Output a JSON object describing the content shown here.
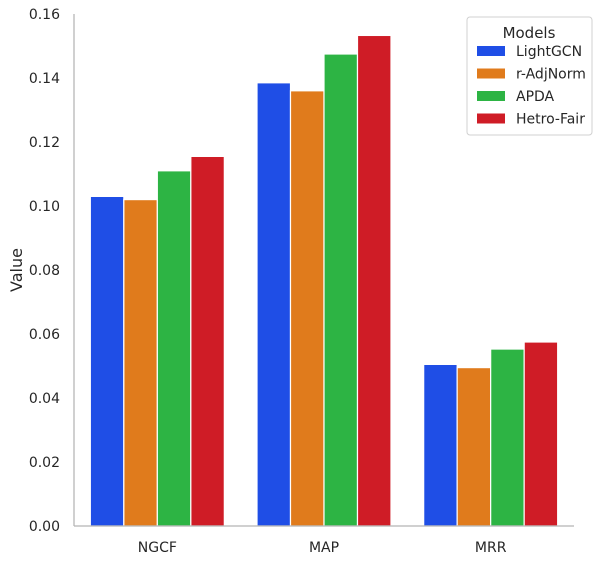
{
  "chart_data": {
    "type": "bar",
    "title": "",
    "xlabel": "",
    "ylabel": "Value",
    "ylim": [
      0,
      0.16
    ],
    "yticks": [
      "0.00",
      "0.02",
      "0.04",
      "0.06",
      "0.08",
      "0.10",
      "0.12",
      "0.14",
      "0.16"
    ],
    "categories": [
      "NGCF",
      "MAP",
      "MRR"
    ],
    "legend": {
      "title": "Models",
      "placement": "top-right"
    },
    "grid": false,
    "series": [
      {
        "name": "LightGCN",
        "color": "#1f4ee6",
        "values": [
          0.103,
          0.1385,
          0.0505
        ]
      },
      {
        "name": "r-AdjNorm",
        "color": "#e07b1c",
        "values": [
          0.102,
          0.136,
          0.0495
        ]
      },
      {
        "name": "APDA",
        "color": "#2db444",
        "values": [
          0.111,
          0.1475,
          0.0553
        ]
      },
      {
        "name": "Hetro-Fair",
        "color": "#cf1c26",
        "values": [
          0.1155,
          0.1533,
          0.0575
        ]
      }
    ]
  }
}
